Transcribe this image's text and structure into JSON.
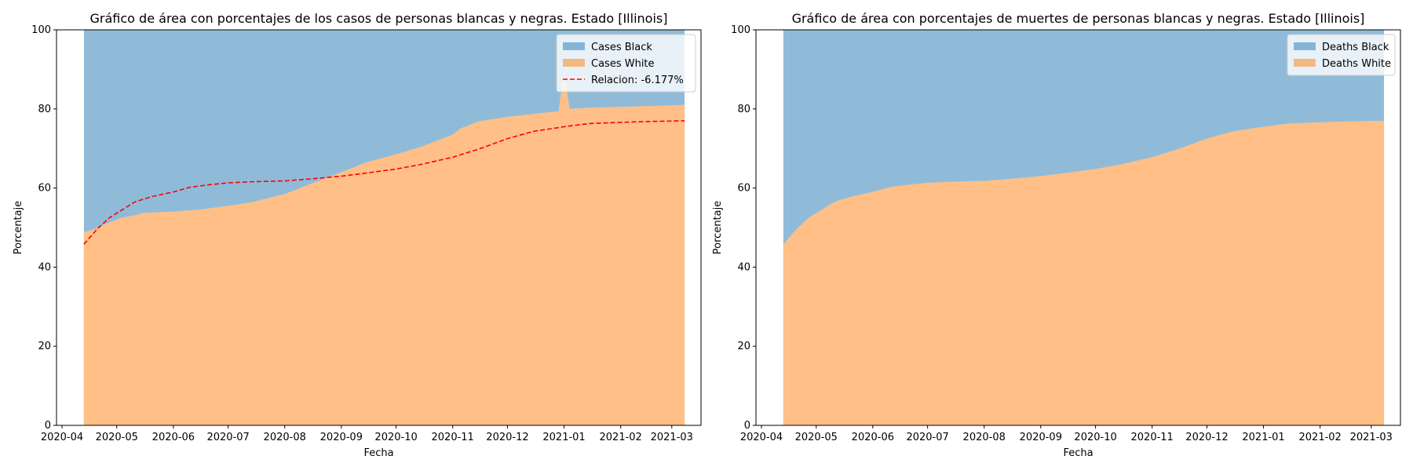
{
  "colors": {
    "black": "#1f77b4",
    "white": "#ff7f0e",
    "fill_opacity": 0.5,
    "ratio": "#ff0000"
  },
  "chart_data": [
    {
      "type": "area",
      "title": "Gráfico de área con porcentajes de los casos de personas blancas y negras. Estado [Illinois]",
      "xlabel": "Fecha",
      "ylabel": "Porcentaje",
      "xlim": [
        "2020-03-29",
        "2021-03-17"
      ],
      "ylim": [
        0,
        100
      ],
      "yticks": [
        0,
        20,
        40,
        60,
        80,
        100
      ],
      "xticks": [
        "2020-04",
        "2020-05",
        "2020-06",
        "2020-07",
        "2020-08",
        "2020-09",
        "2020-10",
        "2020-11",
        "2020-12",
        "2021-01",
        "2021-02",
        "2021-03"
      ],
      "legend": "top-right",
      "series": [
        {
          "name": "Cases Black",
          "stack": "top",
          "color_key": "black"
        },
        {
          "name": "Cases White",
          "stack": "bottom",
          "color_key": "white",
          "points": [
            [
              "2020-04-13",
              48.8
            ],
            [
              "2020-04-20",
              49.8
            ],
            [
              "2020-04-27",
              51.3
            ],
            [
              "2020-05-04",
              52.5
            ],
            [
              "2020-05-11",
              53.1
            ],
            [
              "2020-05-15",
              53.7
            ],
            [
              "2020-06-01",
              54.0
            ],
            [
              "2020-06-15",
              54.5
            ],
            [
              "2020-07-01",
              55.5
            ],
            [
              "2020-07-15",
              56.5
            ],
            [
              "2020-08-01",
              58.5
            ],
            [
              "2020-08-15",
              61.0
            ],
            [
              "2020-09-01",
              64.0
            ],
            [
              "2020-09-15",
              66.5
            ],
            [
              "2020-10-01",
              68.5
            ],
            [
              "2020-10-15",
              70.5
            ],
            [
              "2020-11-01",
              73.5
            ],
            [
              "2020-11-05",
              75.0
            ],
            [
              "2020-11-15",
              76.8
            ],
            [
              "2020-12-01",
              78.0
            ],
            [
              "2020-12-15",
              78.7
            ],
            [
              "2020-12-25",
              79.2
            ],
            [
              "2020-12-29",
              79.4
            ],
            [
              "2021-01-01",
              89.5
            ],
            [
              "2021-01-04",
              80.0
            ],
            [
              "2021-01-15",
              80.3
            ],
            [
              "2021-02-01",
              80.5
            ],
            [
              "2021-02-15",
              80.7
            ],
            [
              "2021-03-08",
              81.0
            ]
          ]
        },
        {
          "name": "Relacion: -6.177%",
          "type": "line",
          "style": "dashed",
          "color_key": "ratio",
          "points": [
            [
              "2020-04-13",
              45.8
            ],
            [
              "2020-04-20",
              49.5
            ],
            [
              "2020-04-27",
              52.5
            ],
            [
              "2020-05-04",
              54.5
            ],
            [
              "2020-05-11",
              56.5
            ],
            [
              "2020-05-20",
              57.8
            ],
            [
              "2020-06-01",
              59.0
            ],
            [
              "2020-06-10",
              60.2
            ],
            [
              "2020-06-20",
              60.8
            ],
            [
              "2020-07-01",
              61.3
            ],
            [
              "2020-07-15",
              61.6
            ],
            [
              "2020-08-01",
              61.8
            ],
            [
              "2020-08-15",
              62.3
            ],
            [
              "2020-09-01",
              63.0
            ],
            [
              "2020-09-15",
              63.8
            ],
            [
              "2020-10-01",
              64.8
            ],
            [
              "2020-10-15",
              66.0
            ],
            [
              "2020-11-01",
              67.8
            ],
            [
              "2020-11-15",
              69.8
            ],
            [
              "2020-12-01",
              72.5
            ],
            [
              "2020-12-15",
              74.3
            ],
            [
              "2021-01-01",
              75.5
            ],
            [
              "2021-01-15",
              76.3
            ],
            [
              "2021-02-01",
              76.6
            ],
            [
              "2021-02-15",
              76.8
            ],
            [
              "2021-03-08",
              77.0
            ]
          ]
        }
      ]
    },
    {
      "type": "area",
      "title": "Gráfico de área con porcentajes de muertes de personas blancas y negras. Estado [Illinois]",
      "xlabel": "Fecha",
      "ylabel": "Porcentaje",
      "xlim": [
        "2020-03-29",
        "2021-03-17"
      ],
      "ylim": [
        0,
        100
      ],
      "yticks": [
        0,
        20,
        40,
        60,
        80,
        100
      ],
      "xticks": [
        "2020-04",
        "2020-05",
        "2020-06",
        "2020-07",
        "2020-08",
        "2020-09",
        "2020-10",
        "2020-11",
        "2020-12",
        "2021-01",
        "2021-02",
        "2021-03"
      ],
      "legend": "top-right",
      "series": [
        {
          "name": "Deaths Black",
          "stack": "top",
          "color_key": "black"
        },
        {
          "name": "Deaths White",
          "stack": "bottom",
          "color_key": "white",
          "points": [
            [
              "2020-04-13",
              45.8
            ],
            [
              "2020-04-20",
              49.5
            ],
            [
              "2020-04-27",
              52.5
            ],
            [
              "2020-05-04",
              54.5
            ],
            [
              "2020-05-11",
              56.5
            ],
            [
              "2020-05-20",
              57.8
            ],
            [
              "2020-06-01",
              59.0
            ],
            [
              "2020-06-10",
              60.2
            ],
            [
              "2020-06-20",
              60.8
            ],
            [
              "2020-07-01",
              61.3
            ],
            [
              "2020-07-15",
              61.6
            ],
            [
              "2020-08-01",
              61.8
            ],
            [
              "2020-08-15",
              62.3
            ],
            [
              "2020-09-01",
              63.0
            ],
            [
              "2020-09-15",
              63.8
            ],
            [
              "2020-10-01",
              64.8
            ],
            [
              "2020-10-15",
              66.0
            ],
            [
              "2020-11-01",
              67.8
            ],
            [
              "2020-11-15",
              69.8
            ],
            [
              "2020-12-01",
              72.5
            ],
            [
              "2020-12-15",
              74.3
            ],
            [
              "2021-01-01",
              75.5
            ],
            [
              "2021-01-15",
              76.3
            ],
            [
              "2021-02-01",
              76.6
            ],
            [
              "2021-02-15",
              76.8
            ],
            [
              "2021-03-08",
              77.0
            ]
          ]
        }
      ]
    }
  ]
}
